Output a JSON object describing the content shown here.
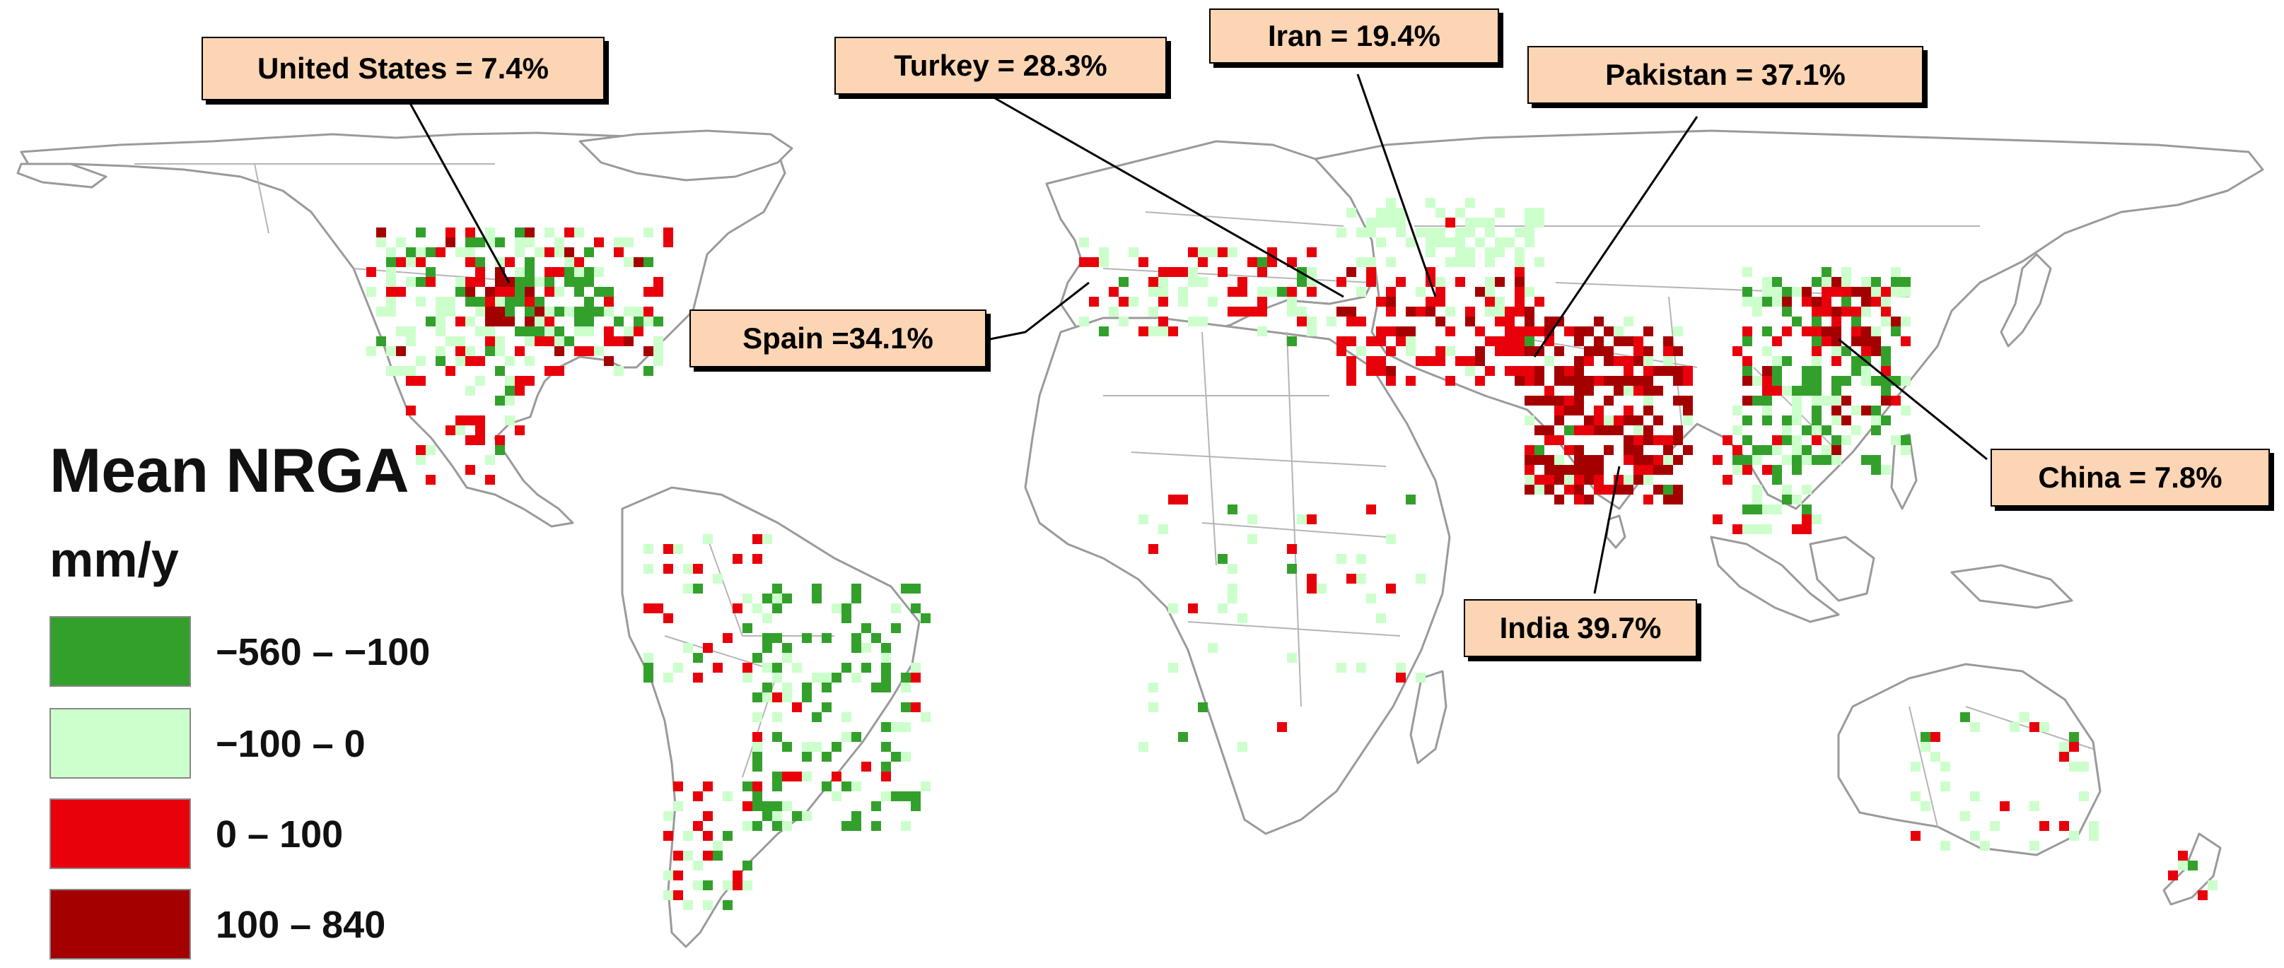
{
  "legend": {
    "title": "Mean NRGA",
    "unit": "mm/y",
    "classes": [
      {
        "label": "−560 – −100",
        "color": "#33a02c"
      },
      {
        "label": "−100 – 0",
        "color": "#ccffcc"
      },
      {
        "label": "0 – 100",
        "color": "#e8000b"
      },
      {
        "label": "100 – 840",
        "color": "#a50000"
      }
    ]
  },
  "callouts": [
    {
      "id": "united-states",
      "text": "United States = 7.4%"
    },
    {
      "id": "turkey",
      "text": "Turkey =  28.3%"
    },
    {
      "id": "iran",
      "text": "Iran =  19.4%"
    },
    {
      "id": "pakistan",
      "text": "Pakistan = 37.1%"
    },
    {
      "id": "spain",
      "text": "Spain =34.1%"
    },
    {
      "id": "china",
      "text": "China = 7.8%"
    },
    {
      "id": "india",
      "text": "India 39.7%"
    }
  ]
}
